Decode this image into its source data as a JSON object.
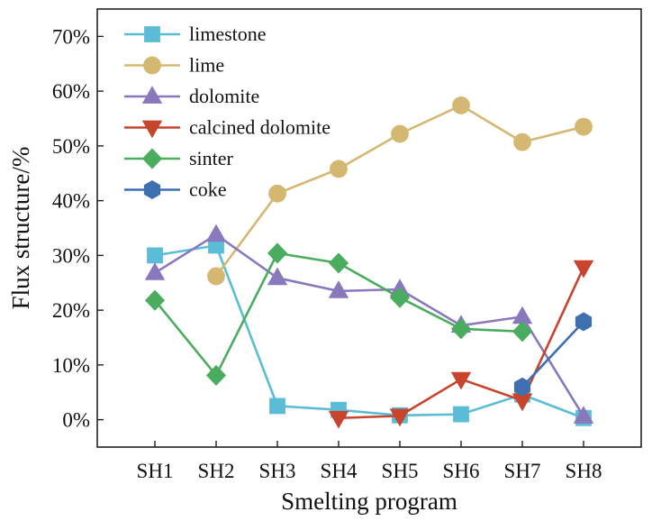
{
  "chart_data": {
    "type": "line",
    "categories": [
      "SH1",
      "SH2",
      "SH3",
      "SH4",
      "SH5",
      "SH6",
      "SH7",
      "SH8"
    ],
    "xlabel": "Smelting program",
    "ylabel": "Flux structure/%",
    "ylim": [
      -5,
      75
    ],
    "yticks": [
      0,
      10,
      20,
      30,
      40,
      50,
      60,
      70
    ],
    "ytick_labels": [
      "0%",
      "10%",
      "20%",
      "30%",
      "40%",
      "50%",
      "60%",
      "70%"
    ],
    "legend_position": "top-left",
    "grid": false,
    "series": [
      {
        "name": "limestone",
        "color": "#5bbcd6",
        "marker": "square",
        "values": [
          30.0,
          31.8,
          2.5,
          1.8,
          0.8,
          1.0,
          4.6,
          0.3
        ]
      },
      {
        "name": "lime",
        "color": "#d4b872",
        "marker": "circle",
        "values": [
          null,
          26.2,
          41.3,
          45.8,
          52.2,
          57.4,
          50.7,
          53.5
        ]
      },
      {
        "name": "dolomite",
        "color": "#8a78bd",
        "marker": "triangle-up",
        "values": [
          26.8,
          33.8,
          25.9,
          23.5,
          23.8,
          17.2,
          18.8,
          0.6
        ]
      },
      {
        "name": "calcined dolomite",
        "color": "#c8442d",
        "marker": "triangle-down",
        "values": [
          null,
          null,
          null,
          0.3,
          0.7,
          7.4,
          3.5,
          27.8
        ]
      },
      {
        "name": "sinter",
        "color": "#4aac5e",
        "marker": "diamond",
        "values": [
          21.8,
          8.1,
          30.4,
          28.6,
          22.3,
          16.6,
          16.1,
          null
        ]
      },
      {
        "name": "coke",
        "color": "#3e6fb0",
        "marker": "hexagon",
        "values": [
          null,
          null,
          null,
          null,
          null,
          null,
          6.0,
          17.9
        ]
      }
    ]
  }
}
